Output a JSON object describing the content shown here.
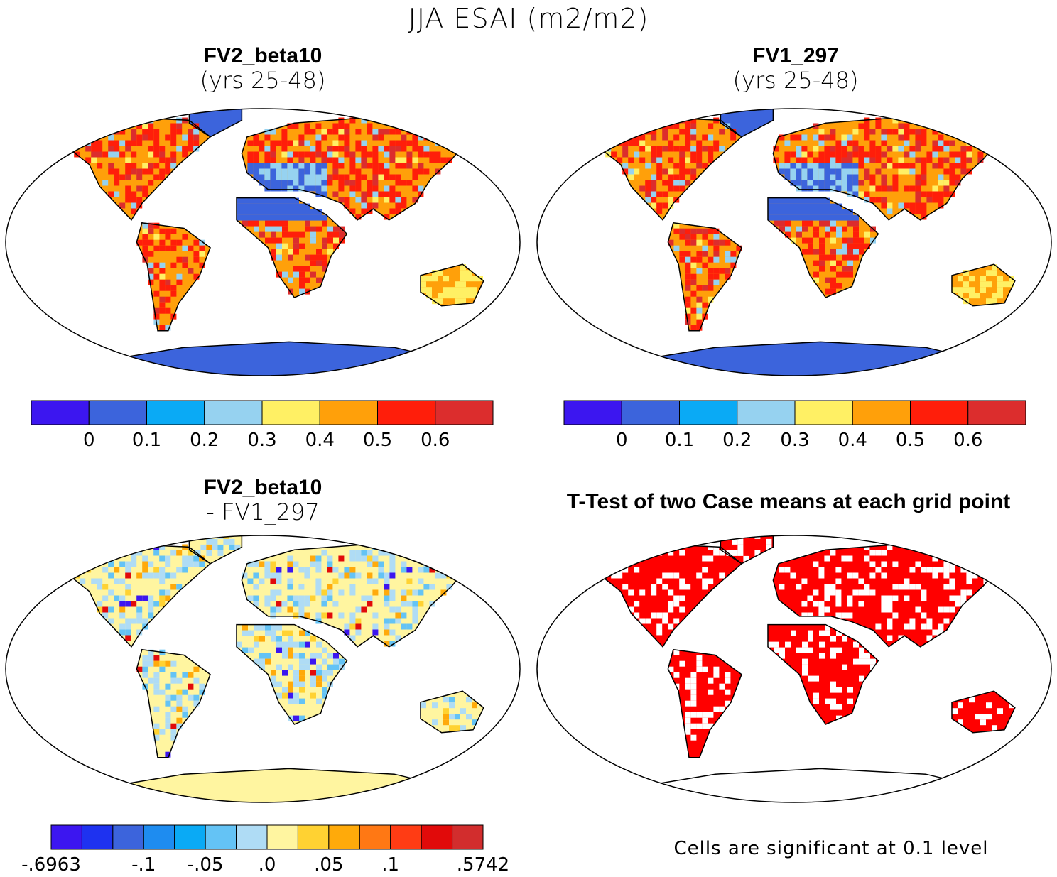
{
  "title": "JJA ESAI (m2/m2)",
  "panels": [
    {
      "id": "p1",
      "title": "FV2_beta10",
      "subtitle": "(yrs 25-48)"
    },
    {
      "id": "p2",
      "title": "FV1_297",
      "subtitle": "(yrs 25-48)"
    },
    {
      "id": "p3",
      "title": "FV2_beta10",
      "subtitle": "- FV1_297"
    },
    {
      "id": "p4",
      "title": "T-Test of two Case means at each grid point",
      "subtitle": ""
    }
  ],
  "colorbars": {
    "mean": {
      "colors": [
        "#3c16f0",
        "#3c64dc",
        "#0aaaf5",
        "#96d2f0",
        "#fff064",
        "#ffa00a",
        "#ff1e0a",
        "#dc2d2d"
      ],
      "labels": [
        "0",
        "0.1",
        "0.2",
        "0.3",
        "0.4",
        "0.5",
        "0.6"
      ]
    },
    "diff": {
      "colors": [
        "#3c16f0",
        "#1e32f0",
        "#3c64dc",
        "#1e8cf0",
        "#0aaaf5",
        "#64c3f5",
        "#afdcf5",
        "#fff5a0",
        "#ffd232",
        "#ffaa0a",
        "#ff7814",
        "#ff3c14",
        "#e10a0a",
        "#d22d2d"
      ],
      "labels": [
        ".6963",
        "-.1",
        "-.05",
        ".0",
        ".05",
        ".1",
        ".5742"
      ]
    }
  },
  "ttest_note": "Cells are significant at 0.1 level",
  "map_colors": {
    "land_mean": "#ffa00a",
    "land_high": "#ff1e0a",
    "desert": "#3c64dc",
    "diff_land": "#fff5a0",
    "signif": "#ff0000"
  }
}
